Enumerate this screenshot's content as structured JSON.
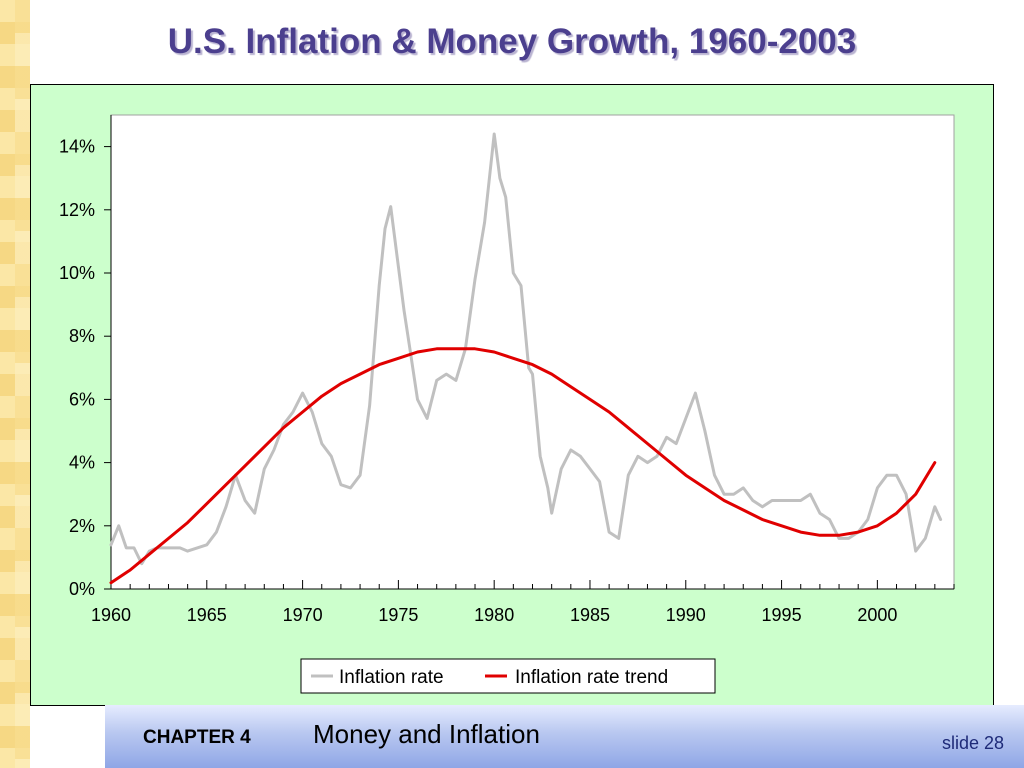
{
  "slide": {
    "title": "U.S. Inflation & Money Growth, 1960-2003",
    "footer_chapter": "CHAPTER 4",
    "footer_subject": "Money and Inflation",
    "footer_slide": "slide 28"
  },
  "colors": {
    "title": "#4b3f8e",
    "chart_background": "#ccffcc",
    "inflation_rate": "#c0c0c0",
    "inflation_trend": "#e00000"
  },
  "chart_data": {
    "type": "line",
    "title": "",
    "xlabel": "",
    "ylabel": "",
    "xlim": [
      1960,
      2004
    ],
    "ylim": [
      0,
      15
    ],
    "y_ticks": [
      0,
      2,
      4,
      6,
      8,
      10,
      12,
      14
    ],
    "y_tick_labels": [
      "0%",
      "2%",
      "4%",
      "6%",
      "8%",
      "10%",
      "12%",
      "14%"
    ],
    "x_ticks": [
      1960,
      1965,
      1970,
      1975,
      1980,
      1985,
      1990,
      1995,
      2000
    ],
    "x_tick_labels": [
      "1960",
      "1965",
      "1970",
      "1975",
      "1980",
      "1985",
      "1990",
      "1995",
      "2000"
    ],
    "grid": false,
    "legend_position": "bottom",
    "series": [
      {
        "name": "Inflation rate",
        "x": [
          1960,
          1960.4,
          1960.8,
          1961.2,
          1961.6,
          1962,
          1962.4,
          1962.8,
          1963.2,
          1963.6,
          1964,
          1964.5,
          1965,
          1965.5,
          1966,
          1966.5,
          1967,
          1967.5,
          1968,
          1968.5,
          1969,
          1969.5,
          1970,
          1970.5,
          1971,
          1971.5,
          1972,
          1972.5,
          1973,
          1973.5,
          1974,
          1974.3,
          1974.6,
          1975,
          1975.3,
          1975.6,
          1976,
          1976.5,
          1977,
          1977.5,
          1978,
          1978.5,
          1979,
          1979.5,
          1980,
          1980.3,
          1980.6,
          1981,
          1981.4,
          1981.8,
          1982,
          1982.4,
          1982.8,
          1983,
          1983.5,
          1984,
          1984.5,
          1985,
          1985.5,
          1986,
          1986.5,
          1987,
          1987.5,
          1988,
          1988.5,
          1989,
          1989.5,
          1990,
          1990.5,
          1991,
          1991.5,
          1992,
          1992.5,
          1993,
          1993.5,
          1994,
          1994.5,
          1995,
          1995.5,
          1996,
          1996.5,
          1997,
          1997.5,
          1998,
          1998.5,
          1999,
          1999.5,
          2000,
          2000.5,
          2001,
          2001.5,
          2002,
          2002.5,
          2003,
          2003.3
        ],
        "values": [
          1.4,
          2.0,
          1.3,
          1.3,
          0.8,
          1.2,
          1.3,
          1.3,
          1.3,
          1.3,
          1.2,
          1.3,
          1.4,
          1.8,
          2.6,
          3.6,
          2.8,
          2.4,
          3.8,
          4.4,
          5.2,
          5.6,
          6.2,
          5.6,
          4.6,
          4.2,
          3.3,
          3.2,
          3.6,
          5.8,
          9.6,
          11.4,
          12.1,
          10.2,
          8.8,
          7.6,
          6.0,
          5.4,
          6.6,
          6.8,
          6.6,
          7.6,
          9.8,
          11.6,
          14.4,
          13.0,
          12.4,
          10.0,
          9.6,
          7.0,
          6.8,
          4.2,
          3.2,
          2.4,
          3.8,
          4.4,
          4.2,
          3.8,
          3.4,
          1.8,
          1.6,
          3.6,
          4.2,
          4.0,
          4.2,
          4.8,
          4.6,
          5.4,
          6.2,
          5.0,
          3.6,
          3.0,
          3.0,
          3.2,
          2.8,
          2.6,
          2.8,
          2.8,
          2.8,
          2.8,
          3.0,
          2.4,
          2.2,
          1.6,
          1.6,
          1.8,
          2.2,
          3.2,
          3.6,
          3.6,
          3.0,
          1.2,
          1.6,
          2.6,
          2.2
        ]
      },
      {
        "name": "Inflation rate trend",
        "x": [
          1960,
          1961,
          1962,
          1963,
          1964,
          1965,
          1966,
          1967,
          1968,
          1969,
          1970,
          1971,
          1972,
          1973,
          1974,
          1975,
          1976,
          1977,
          1978,
          1979,
          1980,
          1981,
          1982,
          1983,
          1984,
          1985,
          1986,
          1987,
          1988,
          1989,
          1990,
          1991,
          1992,
          1993,
          1994,
          1995,
          1996,
          1997,
          1998,
          1999,
          2000,
          2001,
          2002,
          2003
        ],
        "values": [
          0.2,
          0.6,
          1.1,
          1.6,
          2.1,
          2.7,
          3.3,
          3.9,
          4.5,
          5.1,
          5.6,
          6.1,
          6.5,
          6.8,
          7.1,
          7.3,
          7.5,
          7.6,
          7.6,
          7.6,
          7.5,
          7.3,
          7.1,
          6.8,
          6.4,
          6.0,
          5.6,
          5.1,
          4.6,
          4.1,
          3.6,
          3.2,
          2.8,
          2.5,
          2.2,
          2.0,
          1.8,
          1.7,
          1.7,
          1.8,
          2.0,
          2.4,
          3.0,
          4.0
        ]
      }
    ]
  }
}
